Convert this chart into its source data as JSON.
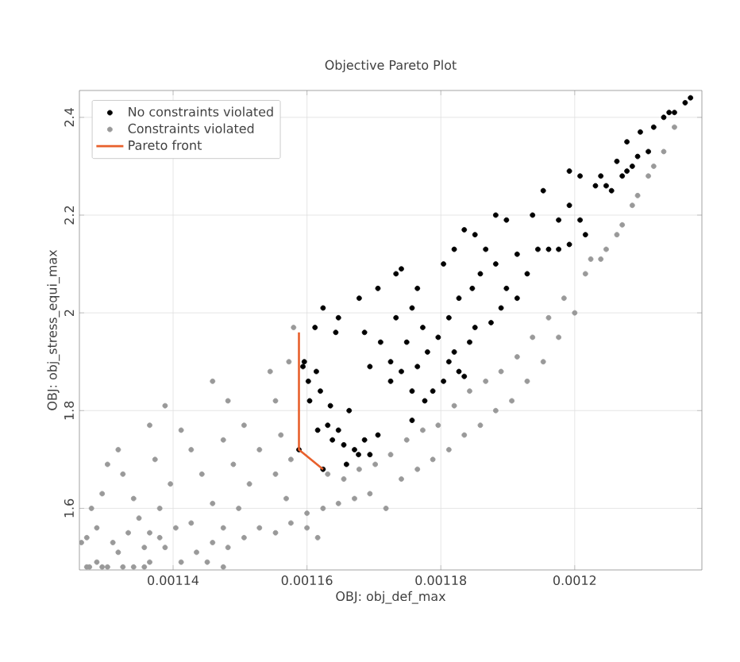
{
  "chart_data": {
    "type": "scatter",
    "title": "Objective Pareto Plot",
    "xlabel": "OBJ: obj_def_max",
    "ylabel": "OBJ: obj_stress_equi_max",
    "xlim": [
      0.001126,
      0.001219
    ],
    "ylim": [
      1.474,
      2.455
    ],
    "xticks": [
      0.00114,
      0.00116,
      0.00118,
      0.0012
    ],
    "yticks": [
      1.6,
      1.8,
      2,
      2.2,
      2.4
    ],
    "grid": true,
    "legend": "top left",
    "series": [
      {
        "name": "No constraints violated",
        "marker": "circle",
        "color": "#000000",
        "x": [
          0.0011596,
          0.0011594,
          0.0011602,
          0.0011614,
          0.0011612,
          0.0011624,
          0.0011647,
          0.0011643,
          0.0011604,
          0.001162,
          0.0011635,
          0.0011616,
          0.0011631,
          0.0011647,
          0.0011663,
          0.0011655,
          0.0011671,
          0.0011686,
          0.0011706,
          0.0011659,
          0.0011677,
          0.0011694,
          0.0011638,
          0.0011678,
          0.0011686,
          0.001171,
          0.0011694,
          0.0011725,
          0.0011741,
          0.0011749,
          0.0011733,
          0.0011757,
          0.0011773,
          0.001178,
          0.0011765,
          0.0011796,
          0.0011812,
          0.001182,
          0.0011827,
          0.0011804,
          0.0011788,
          0.0011757,
          0.0011725,
          0.0011706,
          0.0011733,
          0.0011741,
          0.0011765,
          0.0011804,
          0.001182,
          0.0011835,
          0.0011851,
          0.0011867,
          0.0011882,
          0.0011898,
          0.0011914,
          0.001189,
          0.0011875,
          0.0011851,
          0.0011843,
          0.0011827,
          0.0011847,
          0.0011859,
          0.0011882,
          0.0011898,
          0.0011914,
          0.0011929,
          0.0011945,
          0.0011961,
          0.0011976,
          0.0011992,
          0.0011937,
          0.0011953,
          0.0011976,
          0.0011992,
          0.0011992,
          0.0012008,
          0.0012016,
          0.0012031,
          0.0012039,
          0.0012047,
          0.0012055,
          0.0012063,
          0.0012071,
          0.0012078,
          0.0012086,
          0.0012094,
          0.0012078,
          0.0012098,
          0.0012118,
          0.0012133,
          0.0012141,
          0.0012149,
          0.0012165,
          0.0012173,
          0.001211,
          0.0012008,
          0.0011757,
          0.0011776,
          0.0011812,
          0.0011835,
          0.0011588,
          0.0011624
        ],
        "values": [
          1.9,
          1.89,
          1.86,
          1.88,
          1.97,
          2.01,
          1.99,
          1.96,
          1.82,
          1.84,
          1.81,
          1.76,
          1.77,
          1.76,
          1.8,
          1.73,
          1.72,
          1.74,
          1.75,
          1.69,
          1.71,
          1.71,
          1.74,
          2.03,
          1.96,
          1.94,
          1.89,
          1.9,
          1.88,
          1.94,
          1.99,
          2.01,
          1.97,
          1.92,
          1.89,
          1.95,
          1.99,
          1.92,
          1.88,
          1.86,
          1.84,
          1.84,
          1.86,
          2.05,
          2.08,
          2.09,
          2.05,
          2.1,
          2.13,
          2.17,
          2.16,
          2.13,
          2.1,
          2.05,
          2.03,
          2.01,
          1.98,
          1.97,
          1.94,
          2.03,
          2.05,
          2.08,
          2.2,
          2.19,
          2.12,
          2.08,
          2.13,
          2.13,
          2.13,
          2.14,
          2.2,
          2.25,
          2.19,
          2.22,
          2.29,
          2.19,
          2.16,
          2.26,
          2.28,
          2.26,
          2.25,
          2.31,
          2.28,
          2.29,
          2.3,
          2.32,
          2.35,
          2.37,
          2.38,
          2.4,
          2.41,
          2.41,
          2.43,
          2.44,
          2.33,
          2.28,
          1.78,
          1.82,
          1.9,
          1.87,
          1.72,
          1.68
        ]
      },
      {
        "name": "Constraints violated",
        "marker": "circle",
        "color": "#999999",
        "x": [
          0.0011275,
          0.0011286,
          0.0011302,
          0.0011318,
          0.0011341,
          0.0011365,
          0.0011388,
          0.0011412,
          0.0011435,
          0.0011459,
          0.0011482,
          0.0011506,
          0.0011529,
          0.0011553,
          0.0011576,
          0.00116,
          0.0011624,
          0.0011647,
          0.0011671,
          0.0011694,
          0.0011718,
          0.0011741,
          0.0011765,
          0.0011788,
          0.0011812,
          0.0011835,
          0.0011859,
          0.0011882,
          0.0011906,
          0.0011929,
          0.0011953,
          0.0011976,
          0.0012,
          0.0012016,
          0.0012039,
          0.0012063,
          0.0012086,
          0.001211,
          0.0012133,
          0.0012149,
          0.0011271,
          0.0011286,
          0.0011278,
          0.0011294,
          0.0011302,
          0.0011318,
          0.0011325,
          0.0011341,
          0.0011349,
          0.0011365,
          0.001138,
          0.0011396,
          0.0011373,
          0.0011365,
          0.0011388,
          0.0011412,
          0.0011427,
          0.0011443,
          0.0011459,
          0.0011475,
          0.0011498,
          0.0011514,
          0.001149,
          0.0011475,
          0.0011459,
          0.0011482,
          0.0011506,
          0.0011529,
          0.0011553,
          0.0011576,
          0.0011569,
          0.0011545,
          0.0011553,
          0.0011573,
          0.001158,
          0.0011561,
          0.00116,
          0.0011616,
          0.0011631,
          0.0011655,
          0.0011678,
          0.0011702,
          0.0011725,
          0.0011749,
          0.0011773,
          0.0011796,
          0.001182,
          0.0011843,
          0.0011867,
          0.001189,
          0.0011914,
          0.0011937,
          0.0011961,
          0.0011984,
          0.0012024,
          0.0012047,
          0.0012071,
          0.0012094,
          0.0012118,
          0.0011263,
          0.001131,
          0.0011333,
          0.0011357,
          0.001138,
          0.0011404,
          0.0011427,
          0.0011451,
          0.0011475,
          0.0011271,
          0.0011294,
          0.0011325,
          0.0011357
        ],
        "values": [
          1.48,
          1.49,
          1.48,
          1.51,
          1.48,
          1.49,
          1.52,
          1.49,
          1.51,
          1.53,
          1.52,
          1.54,
          1.56,
          1.55,
          1.57,
          1.59,
          1.6,
          1.61,
          1.62,
          1.63,
          1.6,
          1.66,
          1.68,
          1.7,
          1.72,
          1.75,
          1.77,
          1.8,
          1.82,
          1.86,
          1.9,
          1.95,
          2.0,
          2.08,
          2.11,
          2.16,
          2.22,
          2.28,
          2.33,
          2.38,
          1.54,
          1.56,
          1.6,
          1.63,
          1.69,
          1.72,
          1.67,
          1.62,
          1.58,
          1.55,
          1.6,
          1.65,
          1.7,
          1.77,
          1.81,
          1.76,
          1.72,
          1.67,
          1.61,
          1.56,
          1.6,
          1.65,
          1.69,
          1.74,
          1.86,
          1.82,
          1.77,
          1.72,
          1.67,
          1.7,
          1.62,
          1.88,
          1.82,
          1.9,
          1.97,
          1.75,
          1.56,
          1.54,
          1.67,
          1.66,
          1.68,
          1.69,
          1.71,
          1.74,
          1.76,
          1.77,
          1.81,
          1.84,
          1.86,
          1.88,
          1.91,
          1.95,
          1.99,
          2.03,
          2.11,
          2.13,
          2.18,
          2.24,
          2.3,
          1.53,
          1.53,
          1.55,
          1.52,
          1.54,
          1.56,
          1.57,
          1.49,
          1.48,
          1.48,
          1.48,
          1.48,
          1.48
        ]
      },
      {
        "name": "Pareto front",
        "type": "line",
        "color": "#e8602c",
        "x": [
          0.0011588,
          0.0011588,
          0.0011624
        ],
        "values": [
          1.96,
          1.72,
          1.68
        ]
      }
    ]
  }
}
